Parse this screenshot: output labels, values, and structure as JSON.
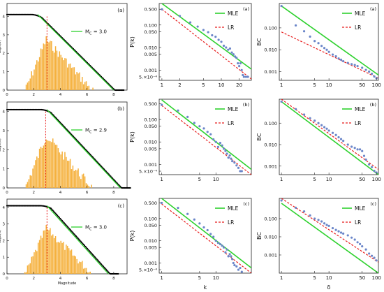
{
  "chart_data": [
    {
      "id": "r0c0",
      "type": "histogram+line",
      "panel_label": "(a)",
      "ylabel": "Log₁₀(N)",
      "xlabel": "",
      "xticks": [
        0,
        2,
        4,
        6,
        8
      ],
      "yticks": [
        0,
        1,
        2,
        3,
        4
      ],
      "xlim": [
        0,
        9
      ],
      "ylim": [
        0,
        4.7
      ],
      "legend": [
        "M_C=3.0"
      ],
      "mc": 3.0,
      "plateau": 4.1,
      "gr_start": 2.3,
      "gr_end": 8.0,
      "hist_peak": 2.9
    },
    {
      "id": "r1c0",
      "type": "histogram+line",
      "panel_label": "(b)",
      "ylabel": "Log₁₀(N)",
      "xlabel": "",
      "xticks": [
        0,
        2,
        4,
        6,
        8
      ],
      "yticks": [
        0,
        1,
        2,
        3,
        4
      ],
      "xlim": [
        0,
        9
      ],
      "ylim": [
        0,
        4.5
      ],
      "legend": [
        "M_C=2.9"
      ],
      "mc": 2.9,
      "plateau": 4.1,
      "gr_start": 3.0,
      "gr_end": 8.5,
      "hist_peak": 2.9
    },
    {
      "id": "r2c0",
      "type": "histogram+line",
      "panel_label": "(c)",
      "ylabel": "Log₁₀(N)",
      "xlabel": "Magnitude",
      "xticks": [
        0,
        2,
        4,
        6,
        8
      ],
      "yticks": [
        0,
        1,
        2,
        3,
        4
      ],
      "xlim": [
        0,
        9
      ],
      "ylim": [
        0,
        4.5
      ],
      "legend": [
        "M_C=3.0"
      ],
      "mc": 3.0,
      "plateau": 4.1,
      "gr_start": 3.0,
      "gr_end": 7.6,
      "hist_peak": 2.9
    },
    {
      "id": "r0c1",
      "type": "loglog",
      "panel_label": "(a)",
      "ylabel": "P(k)",
      "xlabel": "",
      "xticks": [
        "1",
        "2",
        "5",
        "10",
        "20"
      ],
      "xtick_values": [
        1,
        2,
        5,
        10,
        20
      ],
      "yticks": [
        "0.500",
        "0.100",
        "0.050",
        "0.010",
        "0.005",
        "0.001",
        "5.×10⁻⁴"
      ],
      "ytick_values": [
        0.5,
        0.1,
        0.05,
        0.01,
        0.005,
        0.001,
        0.0005
      ],
      "xlim": [
        0.9,
        32
      ],
      "ylim": [
        0.00035,
        0.9
      ],
      "legend": [
        "MLE",
        "LR"
      ],
      "series": [
        {
          "name": "MLE",
          "points": [
            [
              1,
              0.9
            ],
            [
              32,
              0.0011
            ]
          ]
        },
        {
          "name": "LR",
          "points": [
            [
              1,
              0.5
            ],
            [
              32,
              0.0004
            ]
          ]
        }
      ],
      "scatter": [
        [
          1,
          0.5
        ],
        [
          2,
          0.25
        ],
        [
          3,
          0.13
        ],
        [
          4,
          0.085
        ],
        [
          5,
          0.06
        ],
        [
          6,
          0.048
        ],
        [
          7,
          0.035
        ],
        [
          8,
          0.03
        ],
        [
          9,
          0.022
        ],
        [
          10,
          0.018
        ],
        [
          11,
          0.012
        ],
        [
          12,
          0.01
        ],
        [
          13,
          0.008
        ],
        [
          14,
          0.009
        ],
        [
          15,
          0.006
        ],
        [
          16,
          0.005
        ],
        [
          17,
          0.004
        ],
        [
          18,
          0.0035
        ],
        [
          19,
          0.002
        ],
        [
          20,
          0.0015
        ],
        [
          21,
          0.002
        ],
        [
          22,
          0.001
        ],
        [
          23,
          0.0006
        ],
        [
          24,
          0.0005
        ],
        [
          26,
          0.0005
        ],
        [
          28,
          0.0005
        ]
      ]
    },
    {
      "id": "r1c1",
      "type": "loglog",
      "panel_label": "(b)",
      "ylabel": "P(k)",
      "xlabel": "",
      "xticks": [
        "1",
        "5",
        "10"
      ],
      "xtick_values": [
        1,
        5,
        10
      ],
      "yticks": [
        "0.500",
        "0.100",
        "0.050",
        "0.010",
        "0.005",
        "0.001",
        "5.×10⁻⁴"
      ],
      "ytick_values": [
        0.5,
        0.1,
        0.05,
        0.01,
        0.005,
        0.001,
        0.0005
      ],
      "xlim": [
        0.9,
        45
      ],
      "ylim": [
        0.00035,
        0.8
      ],
      "legend": [
        "MLE",
        "LR"
      ],
      "series": [
        {
          "name": "MLE",
          "points": [
            [
              1,
              0.75
            ],
            [
              45,
              0.0006
            ]
          ]
        },
        {
          "name": "LR",
          "points": [
            [
              1,
              0.42
            ],
            [
              45,
              0.00035
            ]
          ]
        }
      ],
      "scatter": [
        [
          1,
          0.45
        ],
        [
          2,
          0.25
        ],
        [
          3,
          0.13
        ],
        [
          4,
          0.07
        ],
        [
          5,
          0.05
        ],
        [
          6,
          0.04
        ],
        [
          7,
          0.028
        ],
        [
          8,
          0.022
        ],
        [
          9,
          0.013
        ],
        [
          10,
          0.01
        ],
        [
          11,
          0.006
        ],
        [
          12,
          0.009
        ],
        [
          13,
          0.007
        ],
        [
          14,
          0.005
        ],
        [
          15,
          0.004
        ],
        [
          16,
          0.003
        ],
        [
          17,
          0.002
        ],
        [
          18,
          0.0025
        ],
        [
          19,
          0.0018
        ],
        [
          20,
          0.0014
        ],
        [
          22,
          0.0012
        ],
        [
          24,
          0.0009
        ],
        [
          26,
          0.0007
        ],
        [
          28,
          0.0005
        ],
        [
          30,
          0.0005
        ]
      ]
    },
    {
      "id": "r2c1",
      "type": "loglog",
      "panel_label": "(c)",
      "ylabel": "P(k)",
      "xlabel": "k",
      "xticks": [
        "1",
        "5",
        "10"
      ],
      "xtick_values": [
        1,
        5,
        10
      ],
      "yticks": [
        "0.500",
        "0.100",
        "0.050",
        "0.010",
        "0.005",
        "0.001",
        "5.×10⁻⁴"
      ],
      "ytick_values": [
        0.5,
        0.1,
        0.05,
        0.01,
        0.005,
        0.001,
        0.0005
      ],
      "xlim": [
        0.9,
        45
      ],
      "ylim": [
        0.00035,
        0.8
      ],
      "legend": [
        "MLE",
        "LR"
      ],
      "series": [
        {
          "name": "MLE",
          "points": [
            [
              1,
              0.8
            ],
            [
              45,
              0.0006
            ]
          ]
        },
        {
          "name": "LR",
          "points": [
            [
              1,
              0.45
            ],
            [
              45,
              0.00035
            ]
          ]
        }
      ],
      "scatter": [
        [
          1,
          0.5
        ],
        [
          2,
          0.3
        ],
        [
          3,
          0.16
        ],
        [
          4,
          0.09
        ],
        [
          5,
          0.06
        ],
        [
          6,
          0.04
        ],
        [
          7,
          0.03
        ],
        [
          8,
          0.02
        ],
        [
          9,
          0.015
        ],
        [
          10,
          0.01
        ],
        [
          11,
          0.008
        ],
        [
          12,
          0.007
        ],
        [
          13,
          0.006
        ],
        [
          14,
          0.005
        ],
        [
          15,
          0.003
        ],
        [
          16,
          0.004
        ],
        [
          17,
          0.002
        ],
        [
          18,
          0.0025
        ],
        [
          19,
          0.002
        ],
        [
          20,
          0.0015
        ],
        [
          21,
          0.001
        ],
        [
          22,
          0.0008
        ],
        [
          24,
          0.0007
        ],
        [
          26,
          0.0005
        ],
        [
          28,
          0.0006
        ],
        [
          30,
          0.0004
        ]
      ]
    },
    {
      "id": "r0c2",
      "type": "loglog",
      "panel_label": "(a)",
      "ylabel": "BC",
      "xlabel": "",
      "xticks": [
        "1",
        "5",
        "10",
        "50",
        "100"
      ],
      "xtick_values": [
        1,
        5,
        10,
        50,
        100
      ],
      "yticks": [
        "0.100",
        "0.010",
        "0.001"
      ],
      "ytick_values": [
        0.1,
        0.01,
        0.001
      ],
      "xlim": [
        0.9,
        110
      ],
      "ylim": [
        0.0004,
        1.3
      ],
      "legend": [
        "MLE",
        "LR"
      ],
      "series": [
        {
          "name": "MLE",
          "points": [
            [
              1,
              1.0
            ],
            [
              110,
              0.0007
            ]
          ]
        },
        {
          "name": "LR",
          "points": [
            [
              1,
              0.065
            ],
            [
              110,
              0.0005
            ]
          ]
        }
      ],
      "scatter": [
        [
          1,
          1.0
        ],
        [
          2,
          0.13
        ],
        [
          3,
          0.07
        ],
        [
          4,
          0.04
        ],
        [
          5,
          0.025
        ],
        [
          6,
          0.02
        ],
        [
          7,
          0.015
        ],
        [
          8,
          0.012
        ],
        [
          9,
          0.01
        ],
        [
          10,
          0.008
        ],
        [
          12,
          0.006
        ],
        [
          14,
          0.005
        ],
        [
          16,
          0.004
        ],
        [
          18,
          0.0035
        ],
        [
          20,
          0.003
        ],
        [
          25,
          0.0025
        ],
        [
          30,
          0.0022
        ],
        [
          35,
          0.002
        ],
        [
          40,
          0.0018
        ],
        [
          50,
          0.0015
        ],
        [
          60,
          0.0012
        ],
        [
          70,
          0.001
        ],
        [
          80,
          0.0008
        ],
        [
          90,
          0.0006
        ],
        [
          100,
          0.0005
        ]
      ]
    },
    {
      "id": "r1c2",
      "type": "loglog",
      "panel_label": "(b)",
      "ylabel": "BC",
      "xlabel": "",
      "xticks": [
        "1",
        "5",
        "10",
        "50",
        "100"
      ],
      "xtick_values": [
        1,
        5,
        10,
        50,
        100
      ],
      "yticks": [
        "0.100",
        "0.010",
        "0.001"
      ],
      "ytick_values": [
        0.1,
        0.01,
        0.001
      ],
      "xlim": [
        0.9,
        110
      ],
      "ylim": [
        0.0004,
        1.3
      ],
      "legend": [
        "MLE",
        "LR"
      ],
      "series": [
        {
          "name": "MLE",
          "points": [
            [
              1,
              1.0
            ],
            [
              110,
              0.0004
            ]
          ]
        },
        {
          "name": "LR",
          "points": [
            [
              1,
              1.3
            ],
            [
              110,
              0.0007
            ]
          ]
        }
      ],
      "scatter": [
        [
          1,
          1.0
        ],
        [
          2,
          0.45
        ],
        [
          3,
          0.25
        ],
        [
          4,
          0.17
        ],
        [
          5,
          0.13
        ],
        [
          6,
          0.1
        ],
        [
          7,
          0.08
        ],
        [
          8,
          0.065
        ],
        [
          9,
          0.055
        ],
        [
          10,
          0.045
        ],
        [
          12,
          0.035
        ],
        [
          14,
          0.028
        ],
        [
          16,
          0.022
        ],
        [
          18,
          0.018
        ],
        [
          20,
          0.015
        ],
        [
          25,
          0.01
        ],
        [
          30,
          0.008
        ],
        [
          35,
          0.007
        ],
        [
          40,
          0.006
        ],
        [
          45,
          0.006
        ],
        [
          50,
          0.005
        ],
        [
          55,
          0.003
        ],
        [
          60,
          0.002
        ],
        [
          70,
          0.0012
        ],
        [
          80,
          0.0009
        ],
        [
          90,
          0.0006
        ],
        [
          100,
          0.0005
        ]
      ]
    },
    {
      "id": "r2c2",
      "type": "loglog",
      "panel_label": "(c)",
      "ylabel": "BC",
      "xlabel": "δ",
      "xticks": [
        "1",
        "5",
        "10",
        "50",
        "100"
      ],
      "xtick_values": [
        1,
        5,
        10,
        50,
        100
      ],
      "yticks": [
        "0.100",
        "0.010",
        "0.001"
      ],
      "ytick_values": [
        0.1,
        0.01,
        0.001
      ],
      "xlim": [
        0.9,
        110
      ],
      "ylim": [
        0.0001,
        1.3
      ],
      "legend": [
        "MLE",
        "LR"
      ],
      "series": [
        {
          "name": "MLE",
          "points": [
            [
              1,
              0.7
            ],
            [
              110,
              0.0001
            ]
          ]
        },
        {
          "name": "LR",
          "points": [
            [
              1,
              1.3
            ],
            [
              110,
              0.0004
            ]
          ]
        }
      ],
      "scatter": [
        [
          1,
          1.0
        ],
        [
          2,
          0.4
        ],
        [
          3,
          0.25
        ],
        [
          4,
          0.15
        ],
        [
          5,
          0.1
        ],
        [
          6,
          0.085
        ],
        [
          7,
          0.07
        ],
        [
          8,
          0.055
        ],
        [
          9,
          0.045
        ],
        [
          10,
          0.04
        ],
        [
          12,
          0.03
        ],
        [
          14,
          0.024
        ],
        [
          16,
          0.02
        ],
        [
          18,
          0.017
        ],
        [
          20,
          0.015
        ],
        [
          25,
          0.012
        ],
        [
          30,
          0.009
        ],
        [
          35,
          0.007
        ],
        [
          40,
          0.005
        ],
        [
          45,
          0.004
        ],
        [
          50,
          0.003
        ],
        [
          60,
          0.002
        ],
        [
          70,
          0.0012
        ],
        [
          80,
          0.0009
        ],
        [
          90,
          0.0007
        ],
        [
          100,
          0.0005
        ]
      ]
    }
  ]
}
